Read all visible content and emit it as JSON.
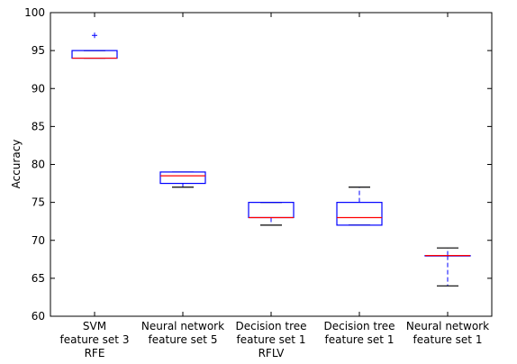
{
  "chart_data": {
    "type": "box",
    "title": "",
    "xlabel": "",
    "ylabel": "Accuracy",
    "ylim": [
      60,
      100
    ],
    "yticks": [
      60,
      65,
      70,
      75,
      80,
      85,
      90,
      95,
      100
    ],
    "grid": false,
    "categories": [
      [
        "SVM",
        "feature set 3",
        "RFE"
      ],
      [
        "Neural network",
        "feature set 5"
      ],
      [
        "Decision tree",
        "feature set 1",
        "RFLV"
      ],
      [
        "Decision tree",
        "feature set 1"
      ],
      [
        "Neural network",
        "feature set 1"
      ]
    ],
    "boxes": [
      {
        "whisker_low": 94,
        "q1": 94,
        "median": 94,
        "q3": 95,
        "whisker_high": 95,
        "outliers": [
          97
        ]
      },
      {
        "whisker_low": 77,
        "q1": 77.5,
        "median": 78.5,
        "q3": 79,
        "whisker_high": 79,
        "outliers": []
      },
      {
        "whisker_low": 72,
        "q1": 73,
        "median": 73,
        "q3": 75,
        "whisker_high": 75,
        "outliers": []
      },
      {
        "whisker_low": 72,
        "q1": 72,
        "median": 73,
        "q3": 75,
        "whisker_high": 77,
        "outliers": []
      },
      {
        "whisker_low": 64,
        "q1": 68,
        "median": 68,
        "q3": 68,
        "whisker_high": 69,
        "outliers": []
      }
    ],
    "colors": {
      "box": "#0000ff",
      "median": "#ff0000",
      "whisker": "#0000ff",
      "cap": "#000000",
      "outlier": "#0000ff",
      "axes": "#000000"
    }
  }
}
